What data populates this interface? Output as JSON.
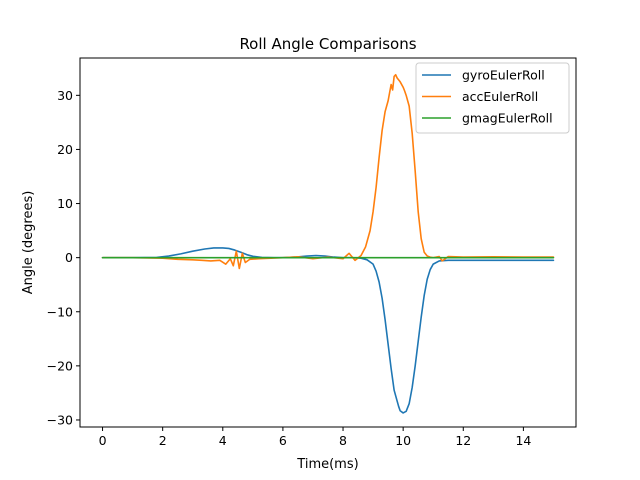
{
  "chart_data": {
    "type": "line",
    "title": "Roll Angle Comparisons",
    "xlabel": "Time(ms)",
    "ylabel": "Angle (degrees)",
    "xlim": [
      -0.75,
      15.75
    ],
    "ylim": [
      -31.3,
      36.9
    ],
    "xticks": [
      0,
      2,
      4,
      6,
      8,
      10,
      12,
      14
    ],
    "yticks": [
      -30,
      -20,
      -10,
      0,
      10,
      20,
      30
    ],
    "xtick_labels": [
      "0",
      "2",
      "4",
      "6",
      "8",
      "10",
      "12",
      "14"
    ],
    "ytick_labels": [
      "−30",
      "−20",
      "−10",
      "0",
      "10",
      "20",
      "30"
    ],
    "grid": false,
    "legend_position": "upper right",
    "series": [
      {
        "name": "gyroEulerRoll",
        "color": "#1f77b4",
        "x": [
          0,
          1.0,
          1.8,
          2.2,
          2.6,
          3.0,
          3.4,
          3.7,
          4.0,
          4.2,
          4.4,
          4.6,
          4.8,
          5.0,
          5.3,
          5.7,
          6.0,
          6.4,
          6.8,
          7.1,
          7.4,
          7.7,
          8.0,
          8.3,
          8.6,
          8.8,
          9.0,
          9.1,
          9.2,
          9.3,
          9.4,
          9.5,
          9.6,
          9.7,
          9.8,
          9.85,
          9.9,
          10.0,
          10.1,
          10.2,
          10.3,
          10.4,
          10.5,
          10.6,
          10.7,
          10.8,
          10.9,
          11.0,
          11.2,
          11.5,
          12.0,
          13.0,
          14.0,
          15.0
        ],
        "y": [
          0,
          0,
          0.05,
          0.3,
          0.7,
          1.2,
          1.6,
          1.8,
          1.8,
          1.7,
          1.4,
          1.0,
          0.55,
          0.25,
          0.05,
          0,
          0,
          0.1,
          0.3,
          0.4,
          0.3,
          0.1,
          0,
          0,
          -0.1,
          -0.4,
          -1.2,
          -2.5,
          -4.5,
          -7.5,
          -11.5,
          -16,
          -20.5,
          -24.5,
          -26.5,
          -27.5,
          -28.3,
          -28.7,
          -28.4,
          -27.0,
          -24.0,
          -20.0,
          -15.5,
          -11.0,
          -7.0,
          -4.0,
          -2.2,
          -1.2,
          -0.6,
          -0.5,
          -0.5,
          -0.5,
          -0.5,
          -0.5
        ]
      },
      {
        "name": "accEulerRoll",
        "color": "#ff7f0e",
        "x": [
          0,
          1.0,
          2.0,
          2.5,
          3.0,
          3.3,
          3.6,
          3.9,
          4.1,
          4.25,
          4.35,
          4.45,
          4.55,
          4.65,
          4.75,
          4.9,
          5.2,
          6.0,
          6.5,
          7.0,
          7.5,
          8.0,
          8.2,
          8.4,
          8.6,
          8.75,
          8.9,
          9.0,
          9.1,
          9.2,
          9.3,
          9.4,
          9.5,
          9.55,
          9.6,
          9.65,
          9.7,
          9.75,
          9.8,
          9.9,
          10.0,
          10.05,
          10.1,
          10.2,
          10.3,
          10.4,
          10.5,
          10.6,
          10.7,
          10.8,
          10.9,
          11.0,
          11.2,
          11.3,
          11.5,
          12.0,
          13.0,
          14.0,
          15.0
        ],
        "y": [
          0,
          0,
          -0.1,
          -0.3,
          -0.4,
          -0.5,
          -0.6,
          -0.5,
          -1.2,
          -0.2,
          -1.5,
          1.2,
          -2.0,
          0.8,
          -0.9,
          -0.3,
          -0.2,
          0,
          0.15,
          -0.2,
          0.1,
          -0.2,
          0.8,
          -0.5,
          0.4,
          2.0,
          5.0,
          8.5,
          13.0,
          18.5,
          23.5,
          27.0,
          29.0,
          30.5,
          32.0,
          31.0,
          33.5,
          33.8,
          33.2,
          32.5,
          31.5,
          30.8,
          30.0,
          28.0,
          23.0,
          16.0,
          8.5,
          3.5,
          1.0,
          0.3,
          0.1,
          0,
          0.2,
          -0.6,
          0.2,
          0.1,
          0.15,
          0.1,
          0.1
        ]
      },
      {
        "name": "gmagEulerRoll",
        "color": "#2ca02c",
        "x": [
          0,
          15.0
        ],
        "y": [
          0,
          0
        ]
      }
    ]
  }
}
